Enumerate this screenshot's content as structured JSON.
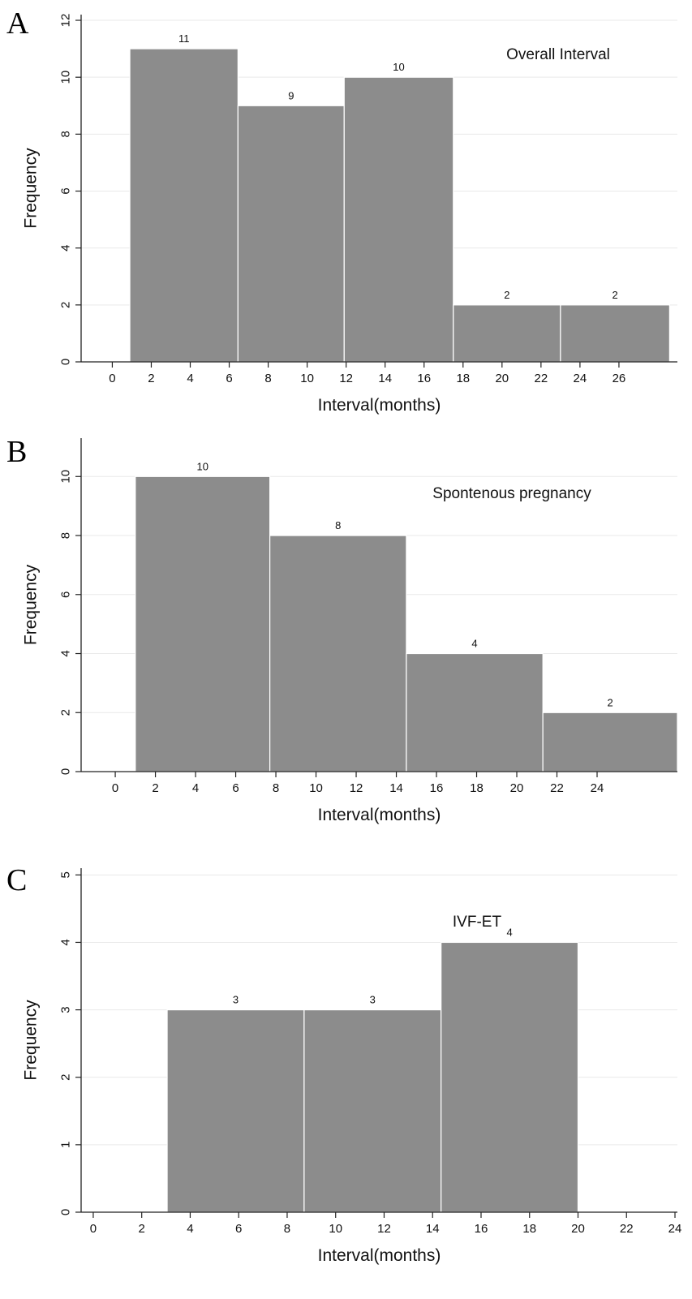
{
  "chart_data": [
    {
      "panel_label": "A",
      "type": "bar",
      "title": "Overall Interval",
      "xlabel": "Interval(months)",
      "ylabel": "Frequency",
      "x_ticks": [
        0,
        2,
        4,
        6,
        8,
        10,
        12,
        14,
        16,
        18,
        20,
        22,
        24,
        26
      ],
      "y_ticks": [
        0,
        2,
        4,
        6,
        8,
        10,
        12
      ],
      "xlim": [
        -1.6,
        29.0
      ],
      "ylim": [
        0,
        12.2
      ],
      "bins": [
        {
          "start": 0.9,
          "end": 6.45,
          "value": 11
        },
        {
          "start": 6.45,
          "end": 11.9,
          "value": 9
        },
        {
          "start": 11.9,
          "end": 17.5,
          "value": 10
        },
        {
          "start": 17.5,
          "end": 23.0,
          "value": 2
        },
        {
          "start": 23.0,
          "end": 28.6,
          "value": 2
        }
      ],
      "grid": true,
      "color": "#8c8c8c"
    },
    {
      "panel_label": "B",
      "type": "bar",
      "title": "Spontenous pregnancy",
      "xlabel": "Interval(months)",
      "ylabel": "Frequency",
      "x_ticks": [
        0,
        2,
        4,
        6,
        8,
        10,
        12,
        14,
        16,
        18,
        20,
        22,
        24
      ],
      "y_ticks": [
        0,
        2,
        4,
        6,
        8,
        10
      ],
      "xlim": [
        -1.7,
        28.0
      ],
      "ylim": [
        0,
        11.3
      ],
      "bins": [
        {
          "start": 1.0,
          "end": 7.7,
          "value": 10
        },
        {
          "start": 7.7,
          "end": 14.5,
          "value": 8
        },
        {
          "start": 14.5,
          "end": 21.3,
          "value": 4
        },
        {
          "start": 21.3,
          "end": 28.0,
          "value": 2
        }
      ],
      "grid": true,
      "color": "#8c8c8c"
    },
    {
      "panel_label": "C",
      "type": "bar",
      "title": "IVF-ET",
      "xlabel": "Interval(months)",
      "ylabel": "Frequency",
      "x_ticks": [
        0,
        2,
        4,
        6,
        8,
        10,
        12,
        14,
        16,
        18,
        20,
        22,
        24
      ],
      "y_ticks": [
        0,
        1,
        2,
        3,
        4,
        5
      ],
      "xlim": [
        -0.5,
        24.1
      ],
      "ylim": [
        0,
        5.1
      ],
      "bins": [
        {
          "start": 3.05,
          "end": 8.7,
          "value": 3
        },
        {
          "start": 8.7,
          "end": 14.35,
          "value": 3
        },
        {
          "start": 14.35,
          "end": 20.0,
          "value": 4
        }
      ],
      "grid": true,
      "color": "#8c8c8c"
    }
  ]
}
